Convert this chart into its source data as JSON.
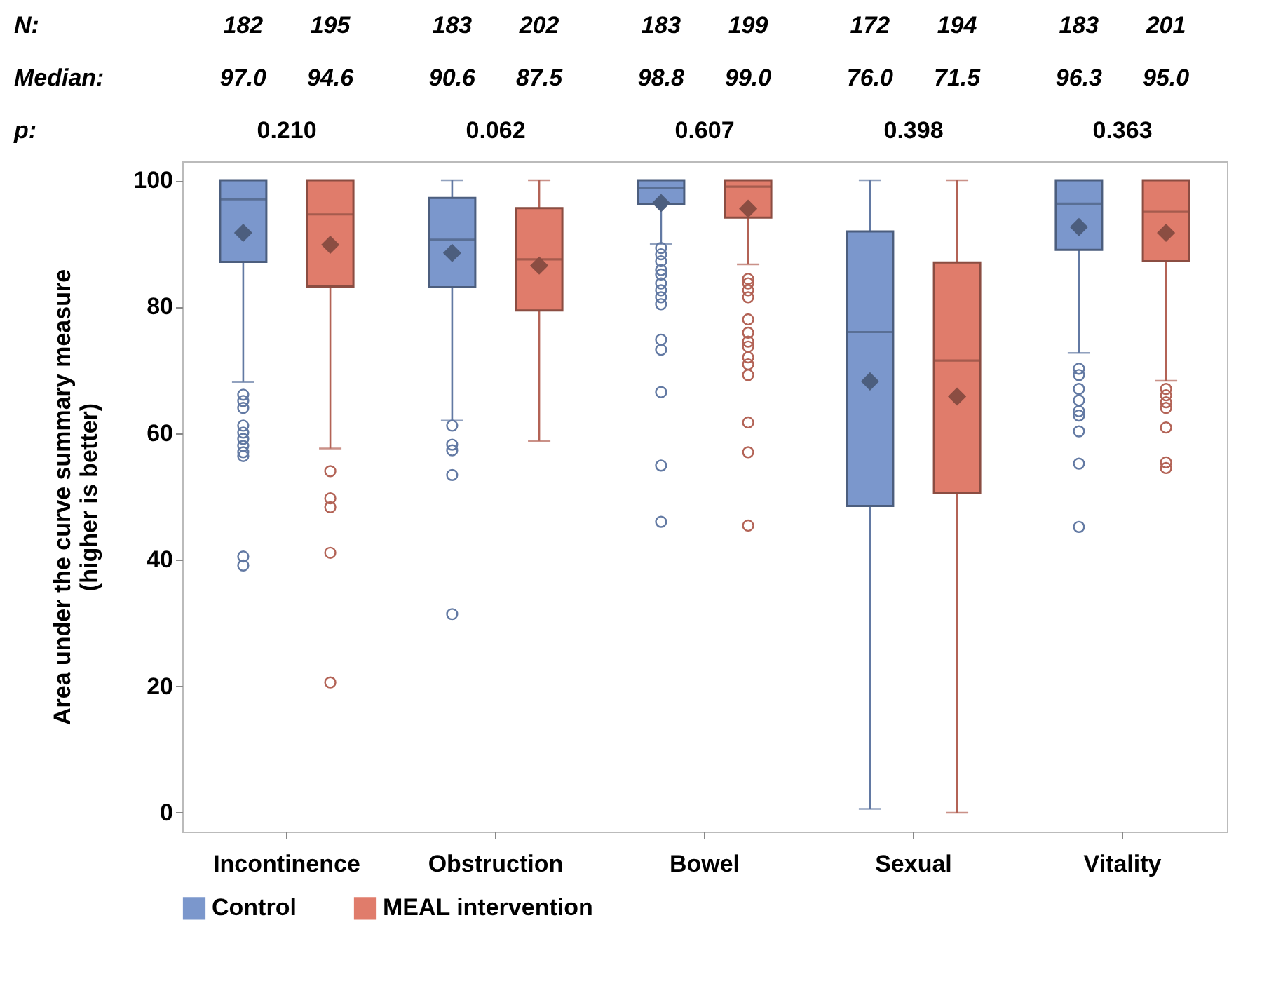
{
  "chart_data": {
    "type": "box",
    "categories": [
      "Incontinence",
      "Obstruction",
      "Bowel",
      "Sexual",
      "Vitality"
    ],
    "ylabel": "Area under the curve summary measure\n(higher is better)",
    "ylim": [
      -3,
      103
    ],
    "yticks": [
      0,
      20,
      40,
      60,
      80,
      100
    ],
    "legend": "bottom",
    "series": [
      {
        "name": "Control",
        "color": "#7b97cc",
        "boxes": [
          {
            "low": 68.1,
            "q1": 87.1,
            "median": 97.0,
            "q3": 100,
            "high": 100,
            "mean": 91.7,
            "outliers": [
              66.1,
              65.1,
              64.0,
              61.2,
              60.1,
              59.1,
              58.0,
              57.0,
              56.4,
              40.5,
              39.1
            ]
          },
          {
            "low": 62.0,
            "q1": 83.1,
            "median": 90.6,
            "q3": 97.2,
            "high": 100,
            "mean": 88.5,
            "outliers": [
              61.2,
              58.2,
              57.3,
              53.4,
              31.4
            ]
          },
          {
            "low": 89.9,
            "q1": 96.2,
            "median": 98.8,
            "q3": 100,
            "high": 100,
            "mean": 96.4,
            "outliers": [
              89.3,
              88.3,
              87.2,
              85.8,
              85.1,
              83.7,
              82.6,
              81.5,
              80.4,
              74.8,
              73.2,
              66.5,
              54.9,
              46.0
            ]
          },
          {
            "low": 0.6,
            "q1": 48.5,
            "median": 76.0,
            "q3": 91.9,
            "high": 100,
            "mean": 68.2
          },
          {
            "low": 72.7,
            "q1": 89.0,
            "median": 96.3,
            "q3": 100,
            "high": 100,
            "mean": 92.6,
            "outliers": [
              70.2,
              69.2,
              67.0,
              65.2,
              63.5,
              62.8,
              60.3,
              55.2,
              45.2
            ]
          }
        ]
      },
      {
        "name": "MEAL intervention",
        "color": "#e07c6b",
        "boxes": [
          {
            "low": 57.6,
            "q1": 83.2,
            "median": 94.6,
            "q3": 100,
            "high": 100,
            "mean": 89.8,
            "outliers": [
              54.0,
              49.7,
              48.3,
              41.1,
              20.6
            ]
          },
          {
            "low": 58.8,
            "q1": 79.4,
            "median": 87.5,
            "q3": 95.6,
            "high": 100,
            "mean": 86.5
          },
          {
            "low": 86.7,
            "q1": 94.1,
            "median": 99.0,
            "q3": 100,
            "high": 100,
            "mean": 95.5,
            "outliers": [
              84.4,
              83.7,
              82.6,
              81.5,
              78.0,
              75.9,
              74.5,
              73.7,
              72.0,
              70.9,
              69.2,
              61.7,
              57.0,
              45.4
            ]
          },
          {
            "low": 0,
            "q1": 50.5,
            "median": 71.5,
            "q3": 87.0,
            "high": 100,
            "mean": 65.8
          },
          {
            "low": 68.3,
            "q1": 87.2,
            "median": 95.0,
            "q3": 100,
            "high": 100,
            "mean": 91.7,
            "outliers": [
              67.0,
              66.0,
              64.9,
              64.0,
              60.9,
              55.4,
              54.5
            ]
          }
        ]
      }
    ],
    "annotations": [
      "N:",
      "182",
      "195",
      "183",
      "202",
      "183",
      "199",
      "172",
      "194",
      "183",
      "201",
      "Median:",
      "97.0",
      "94.6",
      "90.6",
      "87.5",
      "98.8",
      "99.0",
      "76.0",
      "71.5",
      "96.3",
      "95.0",
      "p:",
      "0.210",
      "0.062",
      "0.607",
      "0.398",
      "0.363"
    ]
  }
}
